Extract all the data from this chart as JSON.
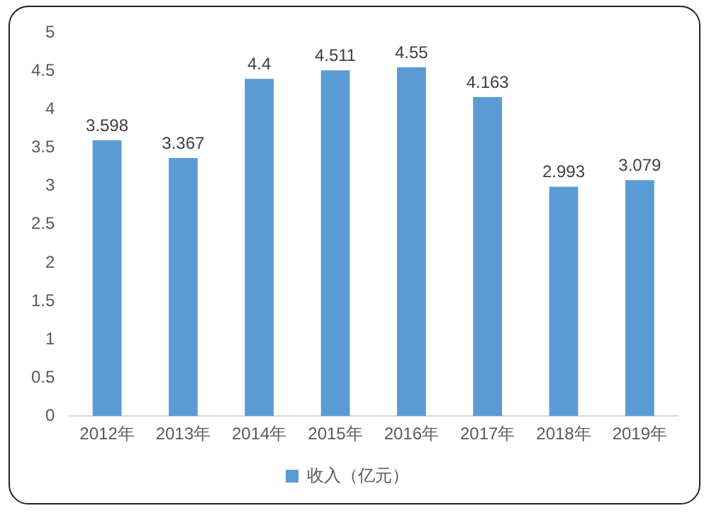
{
  "chart_data": {
    "type": "bar",
    "categories": [
      "2012年",
      "2013年",
      "2014年",
      "2015年",
      "2016年",
      "2017年",
      "2018年",
      "2019年"
    ],
    "series": [
      {
        "name": "收入（亿元）",
        "color": "#5b9bd5",
        "values": [
          3.598,
          3.367,
          4.4,
          4.511,
          4.55,
          4.163,
          2.993,
          3.079
        ]
      }
    ],
    "ylim": [
      0,
      5
    ],
    "yticks": [
      0,
      0.5,
      1,
      1.5,
      2,
      2.5,
      3,
      3.5,
      4,
      4.5,
      5
    ],
    "grid": false,
    "legend": "bottom",
    "data_labels": true
  }
}
